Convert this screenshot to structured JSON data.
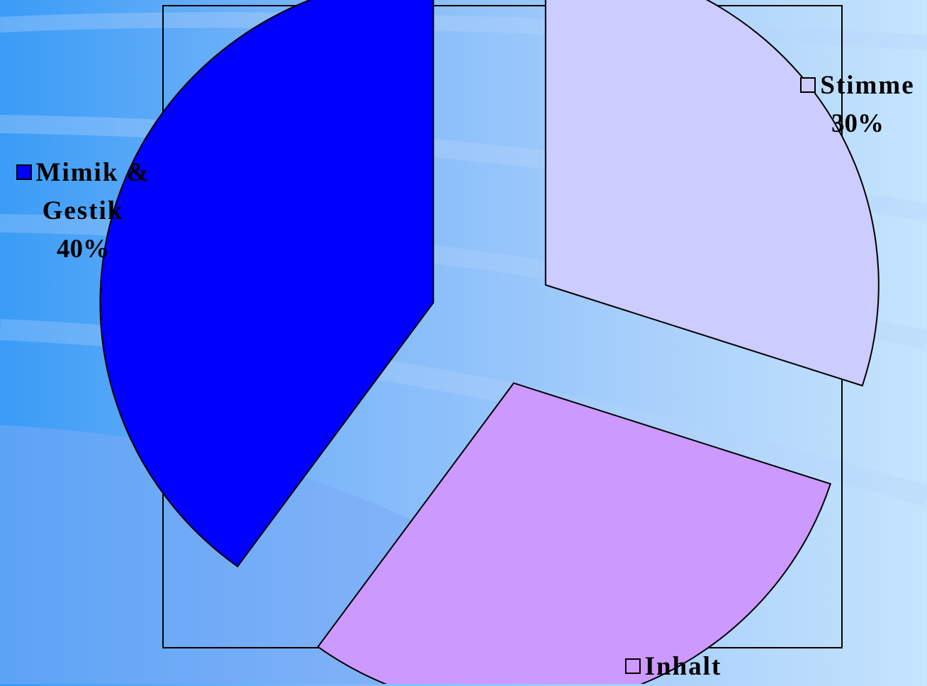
{
  "chart_data": {
    "type": "pie",
    "title": "",
    "slices": [
      {
        "name": "Mimik & Gestik",
        "value": 40,
        "label_value": "40%",
        "color": "#0000ff"
      },
      {
        "name": "Stimme",
        "value": 30,
        "label_value": "30%",
        "color": "#ccccff"
      },
      {
        "name": "Inhalt",
        "value": 30,
        "label_value": "",
        "color": "#cc99ff"
      }
    ],
    "exploded": true,
    "legend": "inline labels with color swatches",
    "label_lines": {
      "mimik": [
        "Mimik &",
        "Gestik"
      ],
      "stimme": [
        "Stimme"
      ],
      "inhalt": [
        "Inhalt"
      ]
    }
  }
}
